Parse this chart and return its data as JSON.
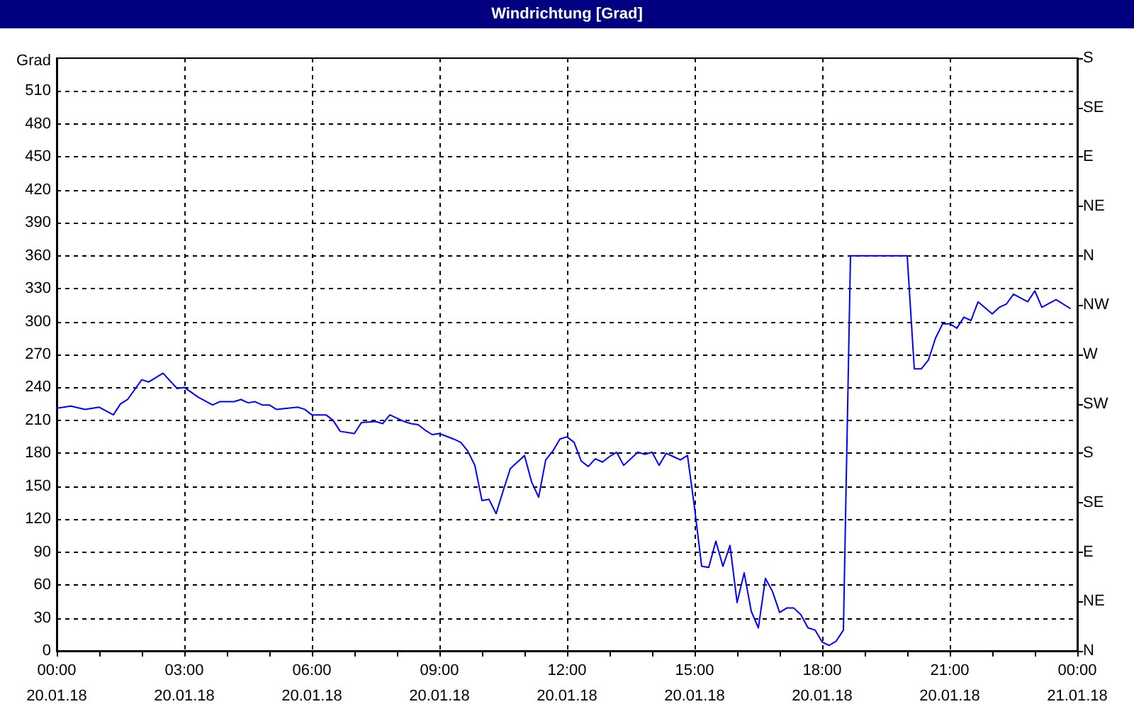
{
  "chart_data": {
    "type": "line",
    "title": "Windrichtung [Grad]",
    "ylabel": "Grad",
    "x": [
      "--01-20T00:00",
      "--01-20T00:20",
      "--01-20T00:40",
      "--01-20T01:00",
      "--01-20T01:20",
      "--01-20T01:30",
      "--01-20T01:40",
      "--01-20T02:00",
      "--01-20T02:10",
      "--01-20T02:30",
      "--01-20T02:50",
      "--01-20T03:00",
      "--01-20T03:20",
      "--01-20T03:40",
      "--01-20T03:50",
      "--01-20T04:10",
      "--01-20T04:20",
      "--01-20T04:30",
      "--01-20T04:40",
      "--01-20T04:50",
      "--01-20T05:00",
      "--01-20T05:10",
      "--01-20T05:40",
      "--01-20T05:50",
      "--01-20T06:00",
      "--01-20T06:20",
      "--01-20T06:30",
      "--01-20T06:40",
      "--01-20T07:00",
      "--01-20T07:10",
      "--01-20T07:30",
      "--01-20T07:40",
      "--01-20T07:50",
      "--01-20T08:10",
      "--01-20T08:20",
      "--01-20T08:30",
      "--01-20T08:40",
      "--01-20T08:50",
      "--01-20T09:00",
      "--01-20T09:20",
      "--01-20T09:30",
      "--01-20T09:40",
      "--01-20T09:50",
      "--01-20T10:00",
      "--01-20T10:10",
      "--01-20T10:20",
      "--01-20T10:30",
      "--01-20T10:40",
      "--01-20T11:00",
      "--01-20T11:10",
      "--01-20T11:20",
      "--01-20T11:30",
      "--01-20T11:40",
      "--01-20T11:50",
      "--01-20T12:00",
      "--01-20T12:10",
      "--01-20T12:20",
      "--01-20T12:30",
      "--01-20T12:40",
      "--01-20T12:50",
      "--01-20T13:00",
      "--01-20T13:10",
      "--01-20T13:20",
      "--01-20T13:40",
      "--01-20T13:50",
      "--01-20T14:00",
      "--01-20T14:10",
      "--01-20T14:20",
      "--01-20T14:30",
      "--01-20T14:40",
      "--01-20T14:50",
      "--01-20T15:00",
      "--01-20T15:10",
      "--01-20T15:20",
      "--01-20T15:30",
      "--01-20T15:40",
      "--01-20T15:50",
      "--01-20T16:00",
      "--01-20T16:10",
      "--01-20T16:20",
      "--01-20T16:30",
      "--01-20T16:40",
      "--01-20T16:50",
      "--01-20T17:00",
      "--01-20T17:10",
      "--01-20T17:20",
      "--01-20T17:30",
      "--01-20T17:40",
      "--01-20T17:50",
      "--01-20T18:00",
      "--01-20T18:10",
      "--01-20T18:20",
      "--01-20T18:30",
      "--01-20T18:40",
      "--01-20T20:00",
      "--01-20T20:10",
      "--01-20T20:20",
      "--01-20T20:30",
      "--01-20T20:40",
      "--01-20T20:50",
      "--01-20T21:00",
      "--01-20T21:10",
      "--01-20T21:20",
      "--01-20T21:30",
      "--01-20T21:40",
      "--01-20T22:00",
      "--01-20T22:10",
      "--01-20T22:20",
      "--01-20T22:30",
      "--01-20T22:50",
      "--01-20T23:00",
      "--01-20T23:10",
      "--01-20T23:30",
      "--01-20T23:50"
    ],
    "series": [
      {
        "color": "#0000ff",
        "values": [
          221,
          223,
          220,
          222,
          215,
          225,
          229,
          247,
          245,
          253,
          239,
          240,
          231,
          224,
          227,
          227,
          229,
          226,
          227,
          224,
          224,
          220,
          222,
          220,
          215,
          215,
          210,
          200,
          198,
          208,
          209,
          207,
          215,
          209,
          207,
          206,
          201,
          197,
          198,
          193,
          190,
          182,
          169,
          137,
          138,
          125,
          146,
          166,
          178,
          154,
          140,
          174,
          182,
          193,
          195,
          190,
          173,
          168,
          175,
          172,
          177,
          181,
          169,
          181,
          179,
          181,
          169,
          180,
          177,
          174,
          178,
          130,
          77,
          76,
          100,
          77,
          96,
          44,
          71,
          36,
          21,
          66,
          54,
          35,
          39,
          39,
          33,
          21,
          19,
          8,
          5,
          9,
          19,
          360,
          360,
          257,
          257,
          265,
          285,
          298,
          298,
          294,
          304,
          301,
          318,
          307,
          313,
          316,
          325,
          318,
          328,
          313,
          320,
          312
        ]
      }
    ],
    "xlim": [
      "--01-20T00:00",
      "--01-21T00:00"
    ],
    "xticks": [
      {
        "value": "--01-20T00:00",
        "label": "00:00\n20.01.18"
      },
      {
        "value": "--01-20T01:00",
        "label": null
      },
      {
        "value": "--01-20T02:00",
        "label": null
      },
      {
        "value": "--01-20T03:00",
        "label": "03:00\n20.01.18"
      },
      {
        "value": "--01-20T04:00",
        "label": null
      },
      {
        "value": "--01-20T05:00",
        "label": null
      },
      {
        "value": "--01-20T06:00",
        "label": "06:00\n20.01.18"
      },
      {
        "value": "--01-20T07:00",
        "label": null
      },
      {
        "value": "--01-20T08:00",
        "label": null
      },
      {
        "value": "--01-20T09:00",
        "label": "09:00\n20.01.18"
      },
      {
        "value": "--01-20T10:00",
        "label": null
      },
      {
        "value": "--01-20T11:00",
        "label": null
      },
      {
        "value": "--01-20T12:00",
        "label": "12:00\n20.01.18"
      },
      {
        "value": "--01-20T13:00",
        "label": null
      },
      {
        "value": "--01-20T14:00",
        "label": null
      },
      {
        "value": "--01-20T15:00",
        "label": "15:00\n20.01.18"
      },
      {
        "value": "--01-20T16:00",
        "label": null
      },
      {
        "value": "--01-20T17:00",
        "label": null
      },
      {
        "value": "--01-20T18:00",
        "label": "18:00\n20.01.18"
      },
      {
        "value": "--01-20T19:00",
        "label": null
      },
      {
        "value": "--01-20T20:00",
        "label": null
      },
      {
        "value": "--01-20T21:00",
        "label": "21:00\n20.01.18"
      },
      {
        "value": "--01-20T22:00",
        "label": null
      },
      {
        "value": "--01-20T23:00",
        "label": null
      },
      {
        "value": "--01-21T00:00",
        "label": "00:00\n21.01.18"
      }
    ],
    "ylim": [
      0,
      540
    ],
    "yticks": [
      0,
      30,
      60,
      90,
      120,
      150,
      180,
      210,
      240,
      270,
      300,
      330,
      360,
      390,
      420,
      450,
      480,
      510
    ],
    "y2_categories": [
      "S",
      "SE",
      "E",
      "NE",
      "N",
      "NW",
      "W",
      "SW",
      "S",
      "SE",
      "E",
      "NE",
      "N"
    ],
    "grid": true,
    "marker": "none",
    "line_style": "solid"
  }
}
